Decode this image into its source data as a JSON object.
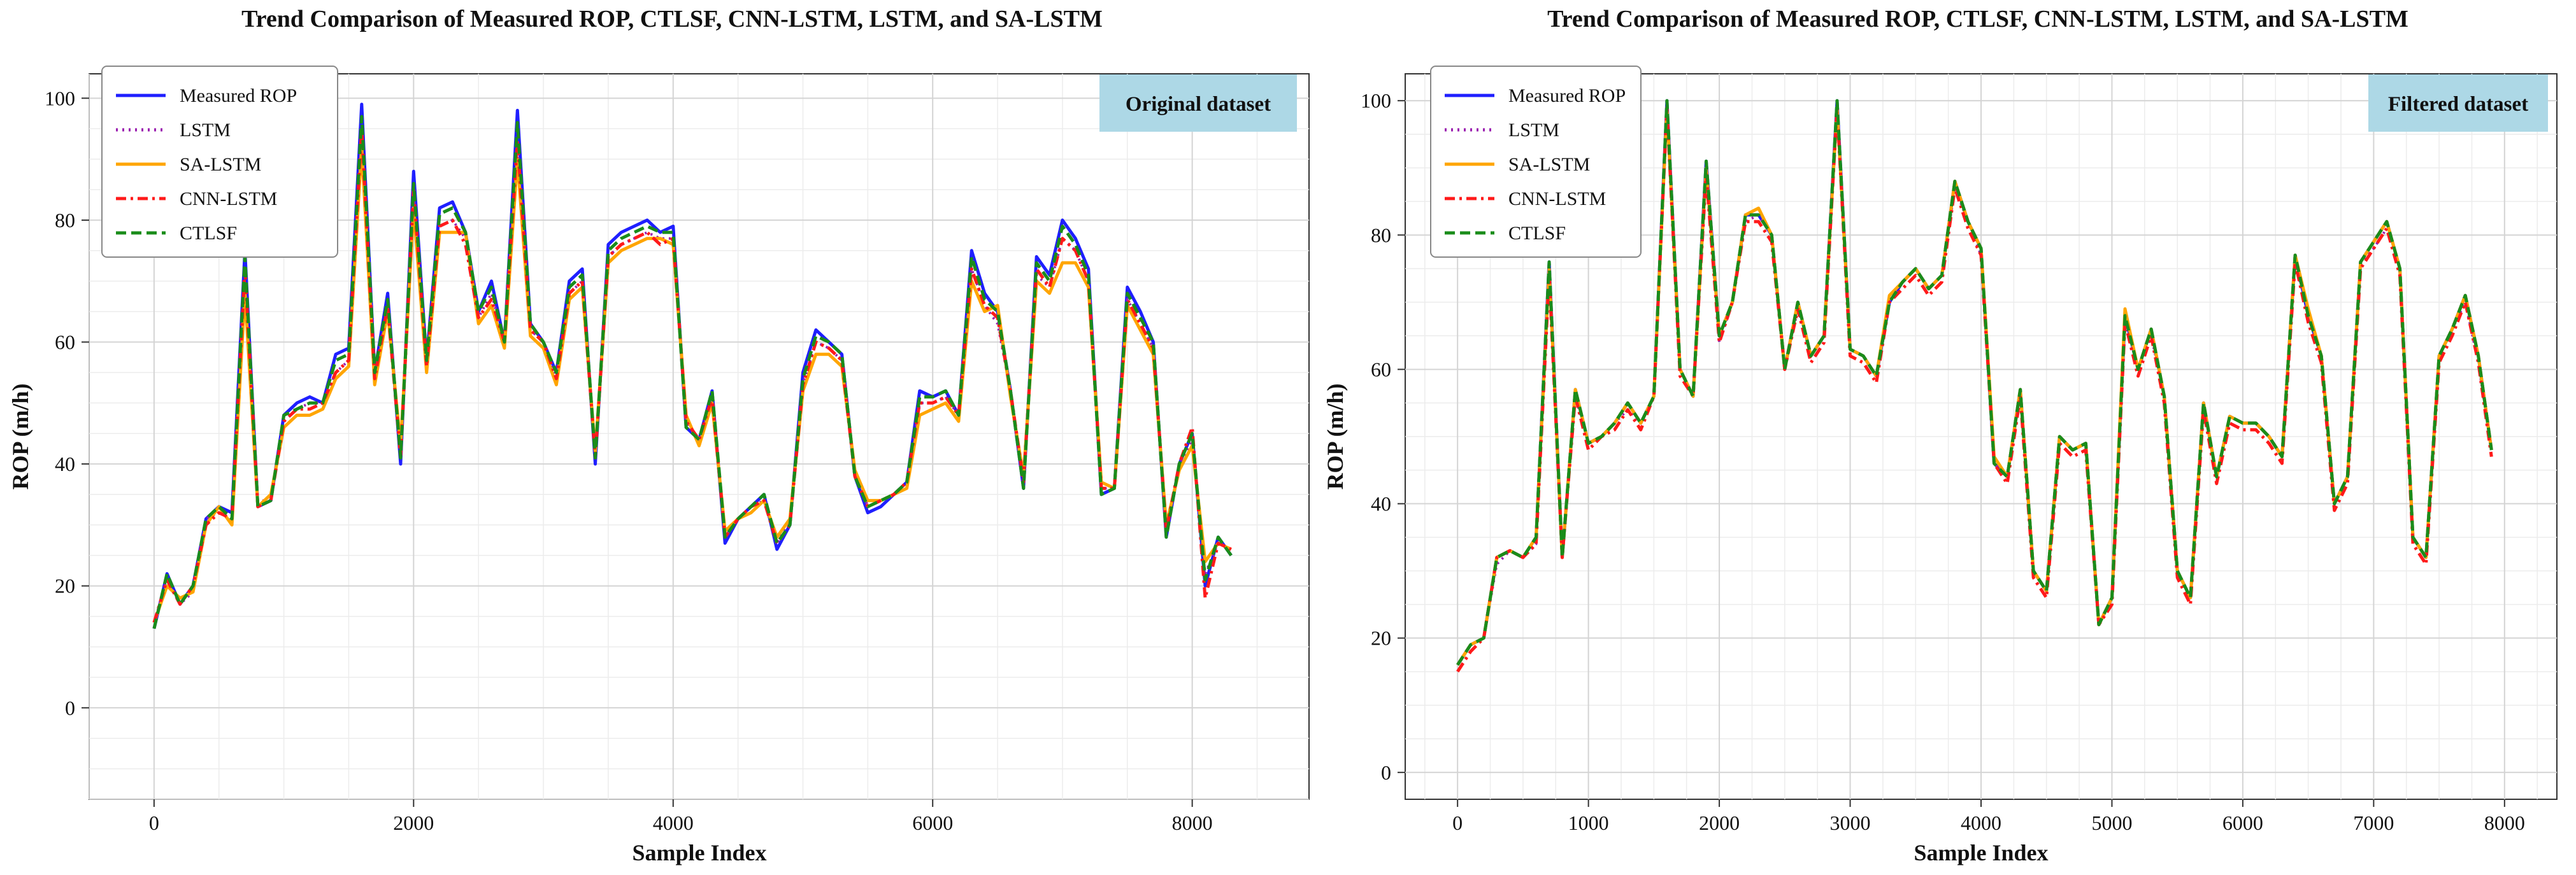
{
  "chart_data": [
    {
      "type": "line",
      "title": "Trend Comparison of Measured ROP, CTLSF, CNN-LSTM, LSTM, and SA-LSTM",
      "xlabel": "Sample Index",
      "ylabel": "ROP (m/h)",
      "annotation": "Original dataset",
      "annotation_bg": "#add8e6",
      "xlim": [
        -500,
        8900
      ],
      "ylim": [
        -15,
        104
      ],
      "xticks": [
        0,
        2000,
        4000,
        6000,
        8000
      ],
      "yticks": [
        0,
        20,
        40,
        60,
        80,
        100
      ],
      "xtick_labels": [
        "0",
        "2000",
        "4000",
        "6000",
        "8000"
      ],
      "ytick_labels": [
        "0",
        "20",
        "40",
        "60",
        "80",
        "100"
      ],
      "grid": true,
      "legend_position": "top-left",
      "series": [
        {
          "name": "Measured ROP",
          "color": "#1f1fff",
          "style": "solid"
        },
        {
          "name": "LSTM",
          "color": "#9b1fb0",
          "style": "dotted"
        },
        {
          "name": "SA-LSTM",
          "color": "#ffa500",
          "style": "solid"
        },
        {
          "name": "CNN-LSTM",
          "color": "#ff1a1a",
          "style": "dashdot"
        },
        {
          "name": "CTLSF",
          "color": "#1a8c1a",
          "style": "dashed"
        }
      ],
      "x": [
        0,
        100,
        200,
        300,
        400,
        500,
        600,
        700,
        800,
        900,
        1000,
        1100,
        1200,
        1300,
        1400,
        1500,
        1600,
        1700,
        1800,
        1900,
        2000,
        2100,
        2200,
        2300,
        2400,
        2500,
        2600,
        2700,
        2800,
        2900,
        3000,
        3100,
        3200,
        3300,
        3400,
        3500,
        3600,
        3700,
        3800,
        3900,
        4000,
        4100,
        4200,
        4300,
        4400,
        4500,
        4600,
        4700,
        4800,
        4900,
        5000,
        5100,
        5200,
        5300,
        5400,
        5500,
        5600,
        5700,
        5800,
        5900,
        6000,
        6100,
        6200,
        6300,
        6400,
        6500,
        6600,
        6700,
        6800,
        6900,
        7000,
        7100,
        7200,
        7300,
        7400,
        7500,
        7600,
        7700,
        7800,
        7900,
        8000,
        8100,
        8200,
        8300
      ],
      "measured": [
        13,
        22,
        17,
        20,
        31,
        33,
        32,
        75,
        33,
        34,
        48,
        50,
        51,
        50,
        58,
        59,
        99,
        55,
        68,
        40,
        88,
        57,
        82,
        83,
        78,
        65,
        70,
        60,
        98,
        63,
        60,
        55,
        70,
        72,
        40,
        76,
        78,
        79,
        80,
        78,
        79,
        46,
        44,
        52,
        27,
        31,
        33,
        35,
        26,
        30,
        55,
        62,
        60,
        58,
        38,
        32,
        33,
        35,
        37,
        52,
        51,
        52,
        48,
        75,
        68,
        65,
        52,
        36,
        74,
        71,
        80,
        77,
        72,
        35,
        36,
        69,
        65,
        60,
        28,
        40,
        45,
        20,
        28,
        25
      ],
      "lstm": [
        14,
        21,
        17,
        19,
        31,
        32,
        31,
        70,
        34,
        34,
        47,
        49,
        50,
        50,
        55,
        57,
        93,
        54,
        66,
        42,
        84,
        56,
        79,
        80,
        77,
        64,
        68,
        60,
        92,
        62,
        60,
        54,
        68,
        70,
        42,
        74,
        76,
        77,
        78,
        77,
        77,
        47,
        44,
        51,
        28,
        31,
        33,
        34,
        27,
        31,
        53,
        60,
        59,
        57,
        39,
        33,
        34,
        35,
        37,
        50,
        50,
        51,
        48,
        72,
        66,
        63,
        52,
        37,
        71,
        69,
        77,
        75,
        70,
        36,
        36,
        67,
        63,
        59,
        29,
        40,
        44,
        22,
        27,
        26
      ],
      "salstm": [
        14,
        20,
        18,
        19,
        30,
        33,
        30,
        68,
        33,
        35,
        46,
        48,
        48,
        49,
        54,
        56,
        92,
        53,
        65,
        43,
        82,
        55,
        78,
        78,
        78,
        63,
        66,
        59,
        90,
        61,
        59,
        53,
        67,
        69,
        42,
        73,
        75,
        76,
        77,
        77,
        76,
        48,
        43,
        50,
        29,
        31,
        32,
        34,
        28,
        31,
        52,
        58,
        58,
        56,
        39,
        34,
        34,
        35,
        36,
        48,
        49,
        50,
        47,
        70,
        65,
        66,
        51,
        38,
        70,
        68,
        73,
        73,
        69,
        37,
        36,
        66,
        62,
        58,
        30,
        39,
        43,
        24,
        27,
        26
      ],
      "cnnlstm": [
        14,
        21,
        17,
        20,
        30,
        32,
        31,
        72,
        33,
        34,
        47,
        49,
        49,
        50,
        55,
        57,
        95,
        54,
        66,
        41,
        85,
        56,
        79,
        80,
        76,
        64,
        67,
        60,
        93,
        62,
        60,
        54,
        68,
        70,
        41,
        74,
        76,
        77,
        78,
        76,
        77,
        47,
        44,
        51,
        28,
        31,
        33,
        34,
        27,
        30,
        53,
        60,
        59,
        57,
        38,
        33,
        34,
        35,
        37,
        50,
        50,
        51,
        48,
        72,
        66,
        64,
        52,
        37,
        72,
        69,
        77,
        75,
        70,
        36,
        36,
        67,
        63,
        59,
        29,
        40,
        46,
        18,
        27,
        26
      ],
      "ctlsf": [
        13,
        22,
        17,
        20,
        31,
        33,
        31,
        74,
        33,
        34,
        48,
        49,
        50,
        50,
        57,
        58,
        97,
        55,
        67,
        41,
        86,
        57,
        81,
        82,
        78,
        65,
        69,
        60,
        96,
        63,
        60,
        55,
        69,
        71,
        41,
        75,
        77,
        78,
        79,
        78,
        78,
        46,
        44,
        52,
        28,
        31,
        33,
        35,
        27,
        30,
        54,
        61,
        60,
        58,
        38,
        33,
        34,
        35,
        37,
        51,
        51,
        52,
        48,
        74,
        67,
        65,
        52,
        36,
        73,
        70,
        79,
        76,
        71,
        35,
        36,
        68,
        64,
        60,
        28,
        40,
        45,
        21,
        28,
        25
      ]
    },
    {
      "type": "line",
      "title": "Trend Comparison of Measured ROP, CTLSF, CNN-LSTM, LSTM, and SA-LSTM",
      "xlabel": "Sample Index",
      "ylabel": "ROP (m/h)",
      "annotation": "Filtered dataset",
      "annotation_bg": "#add8e6",
      "xlim": [
        -400,
        8400
      ],
      "ylim": [
        -4,
        104
      ],
      "xticks": [
        0,
        1000,
        2000,
        3000,
        4000,
        5000,
        6000,
        7000,
        8000
      ],
      "yticks": [
        0,
        20,
        40,
        60,
        80,
        100
      ],
      "xtick_labels": [
        "0",
        "1000",
        "2000",
        "3000",
        "4000",
        "5000",
        "6000",
        "7000",
        "8000"
      ],
      "ytick_labels": [
        "0",
        "20",
        "40",
        "60",
        "80",
        "100"
      ],
      "grid": true,
      "legend_position": "top-left",
      "series": [
        {
          "name": "Measured ROP",
          "color": "#1f1fff",
          "style": "solid"
        },
        {
          "name": "LSTM",
          "color": "#9b1fb0",
          "style": "dotted"
        },
        {
          "name": "SA-LSTM",
          "color": "#ffa500",
          "style": "solid"
        },
        {
          "name": "CNN-LSTM",
          "color": "#ff1a1a",
          "style": "dashdot"
        },
        {
          "name": "CTLSF",
          "color": "#1a8c1a",
          "style": "dashed"
        }
      ],
      "x": [
        0,
        100,
        200,
        300,
        400,
        500,
        600,
        700,
        800,
        900,
        1000,
        1100,
        1200,
        1300,
        1400,
        1500,
        1600,
        1700,
        1800,
        1900,
        2000,
        2100,
        2200,
        2300,
        2400,
        2500,
        2600,
        2700,
        2800,
        2900,
        3000,
        3100,
        3200,
        3300,
        3400,
        3500,
        3600,
        3700,
        3800,
        3900,
        4000,
        4100,
        4200,
        4300,
        4400,
        4500,
        4600,
        4700,
        4800,
        4900,
        5000,
        5100,
        5200,
        5300,
        5400,
        5500,
        5600,
        5700,
        5800,
        5900,
        6000,
        6100,
        6200,
        6300,
        6400,
        6500,
        6600,
        6700,
        6800,
        6900,
        7000,
        7100,
        7200,
        7300,
        7400,
        7500,
        7600,
        7700,
        7800,
        7900
      ],
      "measured": [
        16,
        19,
        20,
        32,
        33,
        32,
        35,
        76,
        32,
        57,
        49,
        50,
        52,
        55,
        52,
        56,
        100,
        60,
        56,
        91,
        65,
        70,
        83,
        83,
        80,
        60,
        70,
        62,
        65,
        100,
        63,
        62,
        59,
        70,
        73,
        75,
        72,
        74,
        88,
        82,
        78,
        46,
        44,
        57,
        30,
        27,
        50,
        48,
        49,
        22,
        26,
        68,
        60,
        66,
        56,
        30,
        26,
        55,
        44,
        53,
        52,
        52,
        50,
        47,
        77,
        68,
        62,
        40,
        44,
        76,
        79,
        82,
        75,
        35,
        32,
        62,
        66,
        71,
        62,
        48
      ],
      "lstm": [
        16,
        19,
        20,
        31,
        33,
        32,
        34,
        75,
        32,
        56,
        49,
        50,
        52,
        54,
        52,
        56,
        98,
        60,
        56,
        89,
        64,
        70,
        82,
        83,
        80,
        60,
        69,
        62,
        65,
        98,
        63,
        62,
        59,
        70,
        73,
        75,
        72,
        74,
        87,
        82,
        77,
        46,
        44,
        56,
        30,
        27,
        50,
        48,
        49,
        22,
        26,
        67,
        60,
        65,
        56,
        30,
        26,
        55,
        44,
        53,
        52,
        52,
        50,
        47,
        76,
        68,
        62,
        40,
        44,
        76,
        78,
        81,
        75,
        35,
        32,
        62,
        66,
        70,
        61,
        48
      ],
      "salstm": [
        16,
        19,
        20,
        32,
        33,
        32,
        35,
        75,
        32,
        57,
        49,
        50,
        52,
        55,
        52,
        56,
        99,
        60,
        56,
        90,
        65,
        70,
        83,
        84,
        80,
        60,
        70,
        62,
        65,
        99,
        63,
        62,
        59,
        71,
        73,
        75,
        72,
        74,
        88,
        82,
        78,
        47,
        44,
        57,
        30,
        27,
        50,
        48,
        49,
        22,
        26,
        69,
        60,
        66,
        56,
        30,
        26,
        55,
        44,
        53,
        52,
        52,
        50,
        47,
        77,
        69,
        62,
        40,
        44,
        76,
        79,
        82,
        75,
        35,
        32,
        62,
        66,
        71,
        62,
        48
      ],
      "cnnlstm": [
        15,
        18,
        20,
        32,
        33,
        32,
        34,
        74,
        32,
        56,
        48,
        50,
        51,
        54,
        51,
        56,
        99,
        59,
        56,
        89,
        64,
        70,
        82,
        82,
        79,
        60,
        69,
        61,
        64,
        99,
        62,
        61,
        58,
        70,
        72,
        74,
        71,
        73,
        87,
        81,
        77,
        46,
        43,
        56,
        29,
        26,
        49,
        47,
        48,
        22,
        25,
        67,
        59,
        65,
        55,
        29,
        25,
        54,
        43,
        52,
        51,
        51,
        49,
        46,
        76,
        67,
        61,
        39,
        43,
        75,
        78,
        81,
        74,
        34,
        31,
        61,
        65,
        70,
        61,
        47
      ],
      "ctlsf": [
        16,
        19,
        20,
        32,
        33,
        32,
        35,
        76,
        32,
        57,
        49,
        50,
        52,
        55,
        52,
        56,
        100,
        60,
        56,
        91,
        65,
        70,
        83,
        83,
        80,
        60,
        70,
        62,
        65,
        100,
        63,
        62,
        59,
        70,
        73,
        75,
        72,
        74,
        88,
        82,
        78,
        46,
        44,
        57,
        30,
        27,
        50,
        48,
        49,
        22,
        26,
        68,
        60,
        66,
        56,
        30,
        26,
        55,
        44,
        53,
        52,
        52,
        50,
        47,
        77,
        68,
        62,
        40,
        44,
        76,
        79,
        82,
        75,
        35,
        32,
        62,
        66,
        71,
        62,
        48
      ]
    }
  ]
}
